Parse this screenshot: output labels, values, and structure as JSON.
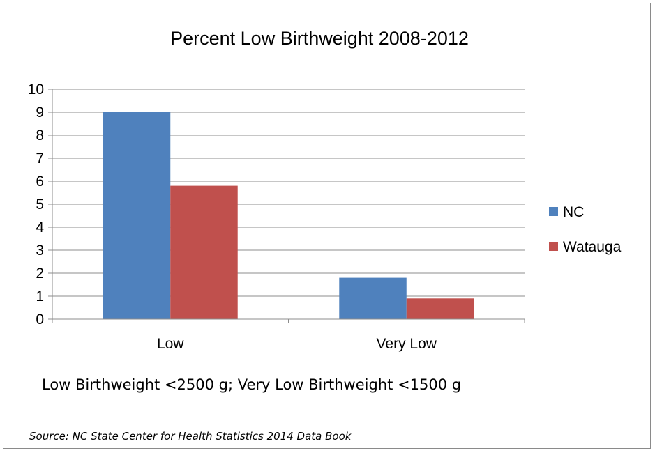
{
  "chart_data": {
    "type": "bar",
    "title": "Percent Low Birthweight  2008-2012",
    "categories": [
      "Low",
      "Very Low"
    ],
    "series": [
      {
        "name": "NC",
        "color": "#4f81bd",
        "values": [
          9.0,
          1.8
        ]
      },
      {
        "name": "Watauga",
        "color": "#c0504d",
        "values": [
          5.8,
          0.9
        ]
      }
    ],
    "ylim": [
      0,
      10
    ],
    "yticks": [
      0,
      1,
      2,
      3,
      4,
      5,
      6,
      7,
      8,
      9,
      10
    ],
    "grid": true,
    "legend": "right",
    "xlabel": "",
    "ylabel": ""
  },
  "note": "Low Birthweight <2500 g; Very Low Birthweight <1500 g",
  "source": "Source: NC State Center for Health Statistics 2014 Data Book"
}
